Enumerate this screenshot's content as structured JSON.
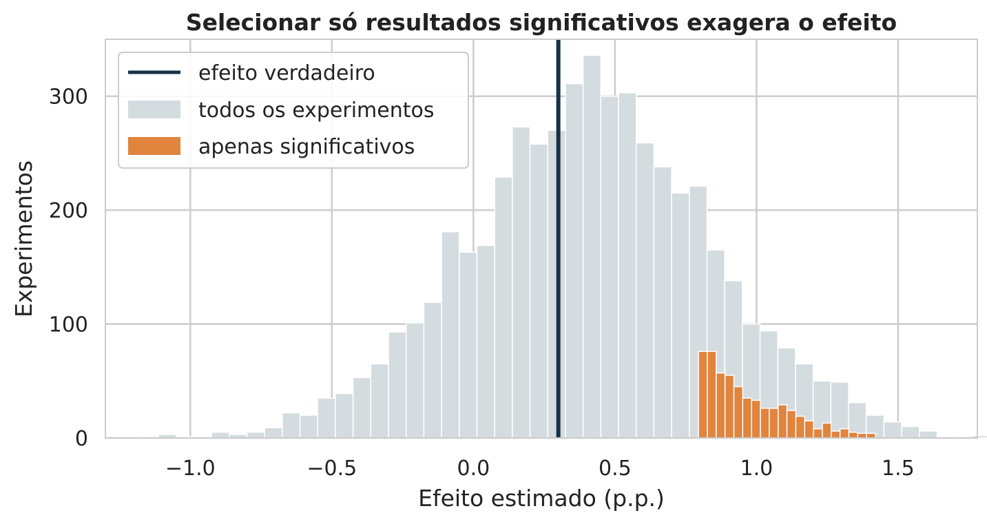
{
  "chart_data": {
    "type": "bar",
    "title": "Selecionar só resultados significativos exagera o efeito",
    "xlabel": "Efeito estimado (p.p.)",
    "ylabel": "Experimentos",
    "xlim": [
      -1.3,
      1.78
    ],
    "ylim": [
      0,
      350
    ],
    "xticks": [
      -1.0,
      -0.5,
      0.0,
      0.5,
      1.0,
      1.5
    ],
    "xtick_labels": [
      "−1.0",
      "−0.5",
      "0.0",
      "0.5",
      "1.0",
      "1.5"
    ],
    "yticks": [
      0,
      100,
      200,
      300
    ],
    "ytick_labels": [
      "0",
      "100",
      "200",
      "300"
    ],
    "grid": true,
    "legend_position": "top-left",
    "true_effect": {
      "name": "efeito verdadeiro",
      "x": 0.3,
      "color": "#16324a"
    },
    "series": [
      {
        "name": "todos os experimentos",
        "color": "#d5dcdf",
        "bin_width": 0.0625,
        "bin_edges_start": -1.175,
        "values": [
          1,
          3,
          1,
          1,
          5,
          3,
          5,
          9,
          22,
          20,
          35,
          39,
          53,
          65,
          93,
          101,
          119,
          181,
          163,
          169,
          229,
          273,
          258,
          270,
          311,
          336,
          300,
          303,
          259,
          238,
          215,
          221,
          165,
          138,
          100,
          94,
          79,
          65,
          50,
          49,
          31,
          20,
          14,
          10,
          6,
          1,
          0,
          2,
          0
        ]
      },
      {
        "name": "apenas significativos",
        "color": "#e0843e",
        "bin_width": 0.03125,
        "bin_edges_start": 0.795,
        "values": [
          76,
          76,
          57,
          55,
          45,
          35,
          33,
          26,
          26,
          29,
          24,
          19,
          15,
          8,
          13,
          6,
          8,
          5,
          4,
          4
        ]
      }
    ]
  }
}
